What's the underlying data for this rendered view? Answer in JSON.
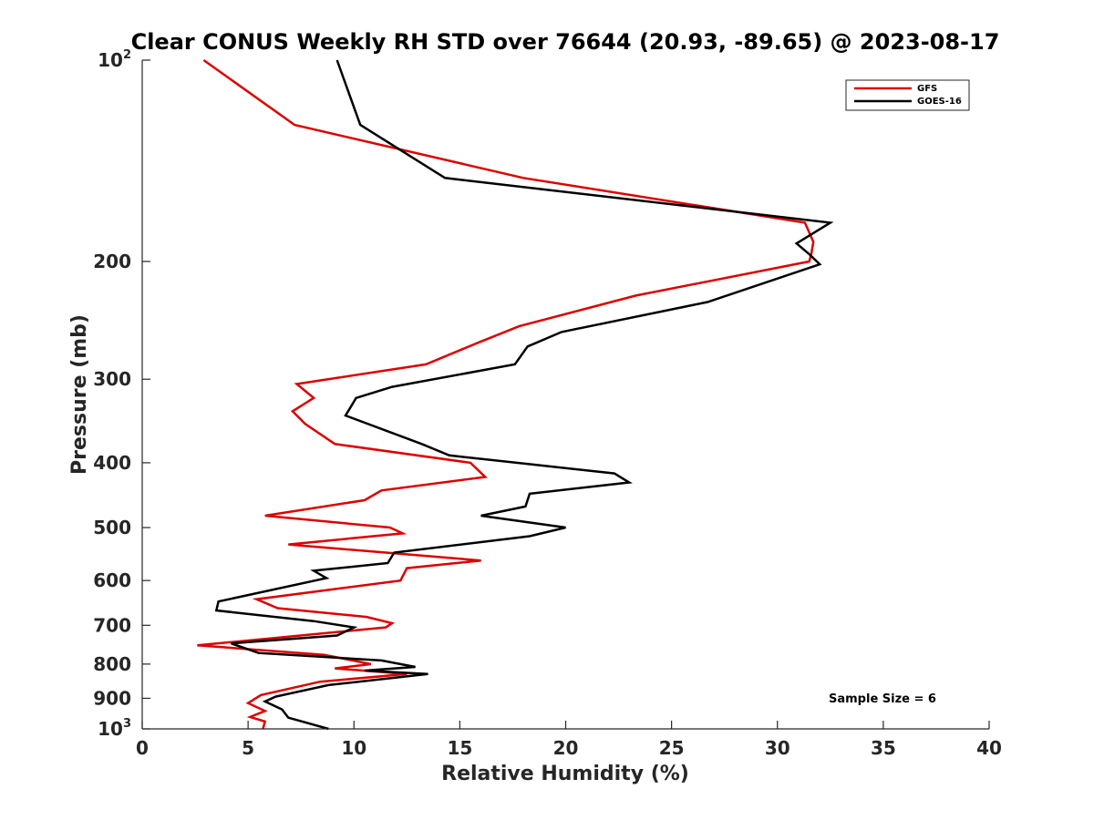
{
  "chart_data": {
    "type": "line",
    "title": "Clear CONUS Weekly RH STD over 76644 (20.93, -89.65) @ 2023-08-17",
    "xlabel": "Relative Humidity (%)",
    "ylabel": "Pressure (mb)",
    "xlim": [
      0,
      40
    ],
    "ylim": [
      100,
      1000
    ],
    "yscale": "log",
    "y_reversed": true,
    "xticks": [
      0,
      5,
      10,
      15,
      20,
      25,
      30,
      35,
      40
    ],
    "yticks": [
      {
        "value": 100,
        "base": "10",
        "exp": "2"
      },
      {
        "value": 200,
        "label": "200"
      },
      {
        "value": 300,
        "label": "300"
      },
      {
        "value": 400,
        "label": "400"
      },
      {
        "value": 500,
        "label": "500"
      },
      {
        "value": 600,
        "label": "600"
      },
      {
        "value": 700,
        "label": "700"
      },
      {
        "value": 800,
        "label": "800"
      },
      {
        "value": 900,
        "label": "900"
      },
      {
        "value": 1000,
        "base": "10",
        "exp": "3"
      }
    ],
    "grid": false,
    "legend_position": "top-right",
    "annotation": "Sample Size = 6",
    "series": [
      {
        "name": "GFS",
        "color": "#dd0000",
        "points": [
          [
            2.9,
            100
          ],
          [
            7.2,
            125
          ],
          [
            18.0,
            150
          ],
          [
            31.3,
            175
          ],
          [
            31.7,
            187
          ],
          [
            31.6,
            195
          ],
          [
            31.5,
            200
          ],
          [
            23.3,
            225
          ],
          [
            17.8,
            250
          ],
          [
            15.8,
            265
          ],
          [
            13.4,
            285
          ],
          [
            7.3,
            305
          ],
          [
            8.1,
            320
          ],
          [
            7.1,
            335
          ],
          [
            7.7,
            350
          ],
          [
            9.1,
            375
          ],
          [
            15.5,
            400
          ],
          [
            16.2,
            420
          ],
          [
            11.3,
            440
          ],
          [
            10.5,
            455
          ],
          [
            5.8,
            480
          ],
          [
            11.7,
            500
          ],
          [
            12.3,
            510
          ],
          [
            6.9,
            530
          ],
          [
            16.0,
            560
          ],
          [
            12.5,
            575
          ],
          [
            12.2,
            600
          ],
          [
            5.4,
            640
          ],
          [
            6.4,
            660
          ],
          [
            10.6,
            680
          ],
          [
            11.8,
            695
          ],
          [
            11.5,
            705
          ],
          [
            2.6,
            750
          ],
          [
            8.6,
            775
          ],
          [
            10.8,
            800
          ],
          [
            9.1,
            812
          ],
          [
            12.5,
            828
          ],
          [
            8.4,
            850
          ],
          [
            5.6,
            890
          ],
          [
            5.0,
            915
          ],
          [
            5.8,
            940
          ],
          [
            5.1,
            960
          ],
          [
            5.8,
            975
          ],
          [
            5.7,
            1000
          ]
        ]
      },
      {
        "name": "GOES-16",
        "color": "#000000",
        "points": [
          [
            9.2,
            100
          ],
          [
            10.3,
            125
          ],
          [
            14.3,
            150
          ],
          [
            32.5,
            175
          ],
          [
            30.9,
            188
          ],
          [
            31.5,
            195
          ],
          [
            32.0,
            202
          ],
          [
            26.7,
            230
          ],
          [
            19.8,
            255
          ],
          [
            18.2,
            268
          ],
          [
            17.6,
            285
          ],
          [
            11.8,
            308
          ],
          [
            10.1,
            320
          ],
          [
            9.6,
            340
          ],
          [
            13.2,
            375
          ],
          [
            14.5,
            390
          ],
          [
            22.3,
            415
          ],
          [
            23.0,
            428
          ],
          [
            18.3,
            445
          ],
          [
            18.1,
            465
          ],
          [
            16.0,
            480
          ],
          [
            20.0,
            500
          ],
          [
            18.3,
            515
          ],
          [
            11.9,
            545
          ],
          [
            11.6,
            565
          ],
          [
            8.1,
            580
          ],
          [
            8.7,
            595
          ],
          [
            3.6,
            645
          ],
          [
            3.5,
            665
          ],
          [
            8.1,
            690
          ],
          [
            10.0,
            705
          ],
          [
            9.2,
            725
          ],
          [
            4.2,
            745
          ],
          [
            5.5,
            770
          ],
          [
            11.3,
            790
          ],
          [
            12.9,
            808
          ],
          [
            10.5,
            818
          ],
          [
            13.5,
            828
          ],
          [
            8.8,
            860
          ],
          [
            6.3,
            895
          ],
          [
            5.8,
            910
          ],
          [
            6.6,
            935
          ],
          [
            6.9,
            962
          ],
          [
            8.8,
            1000
          ]
        ]
      }
    ]
  }
}
